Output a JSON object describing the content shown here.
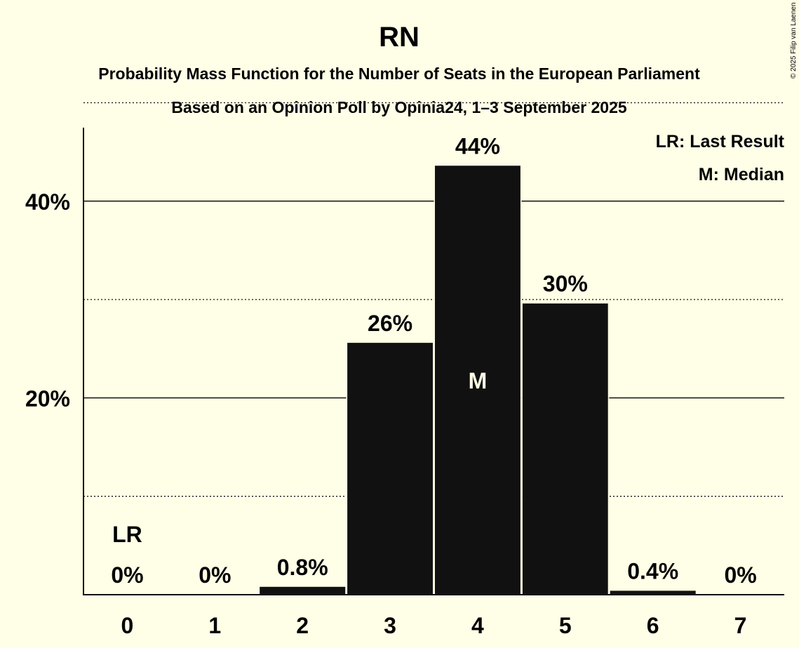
{
  "chart_data": {
    "type": "bar",
    "title": "RN",
    "subtitle": "Probability Mass Function for the Number of Seats in the European Parliament",
    "subtitle2": "Based on an Opinion Poll by Opinia24, 1–3 September 2025",
    "categories": [
      "0",
      "1",
      "2",
      "3",
      "4",
      "5",
      "6",
      "7"
    ],
    "values": [
      0,
      0,
      0.8,
      25.6,
      43.6,
      29.6,
      0.4,
      0
    ],
    "value_labels": [
      "0%",
      "0%",
      "0.8%",
      "26%",
      "44%",
      "30%",
      "0.4%",
      "0%"
    ],
    "yticks": [
      20,
      40
    ],
    "ytick_labels": [
      "20%",
      "40%"
    ],
    "ylim": [
      0,
      47.5
    ],
    "last_result_index": 0,
    "median_index": 4,
    "markers": {
      "last_result": "LR",
      "median": "M"
    },
    "legend": [
      "LR: Last Result",
      "M: Median"
    ],
    "legend_position": "top-right",
    "bar_color": "#111111",
    "background": "#FFFEE6"
  },
  "copyright": "© 2025 Filip van Laenen"
}
